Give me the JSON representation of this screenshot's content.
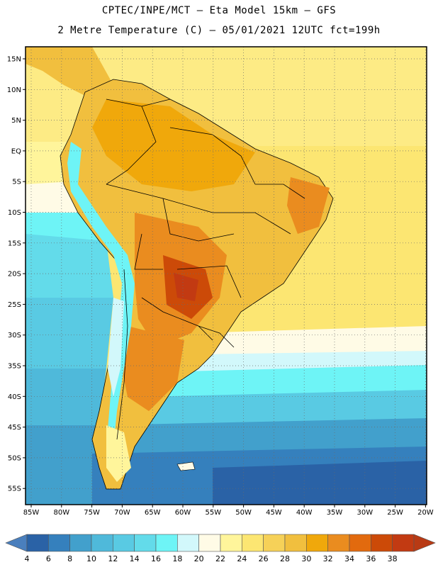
{
  "header": {
    "line1": "CPTEC/INPE/MCT –  Eta Model 15km – GFS",
    "line2": "2 Metre Temperature (C) – 05/01/2021 12UTC fct=199h"
  },
  "axes": {
    "lat_labels": [
      "15N",
      "10N",
      "5N",
      "EQ",
      "5S",
      "10S",
      "15S",
      "20S",
      "25S",
      "30S",
      "35S",
      "40S",
      "45S",
      "50S",
      "55S"
    ],
    "lon_labels": [
      "85W",
      "80W",
      "75W",
      "70W",
      "65W",
      "60W",
      "55W",
      "50W",
      "45W",
      "40W",
      "35W",
      "30W",
      "25W",
      "20W"
    ]
  },
  "colorbar": {
    "labels": [
      "4",
      "6",
      "8",
      "10",
      "12",
      "14",
      "16",
      "18",
      "20",
      "22",
      "24",
      "26",
      "28",
      "30",
      "32",
      "34",
      "36",
      "38"
    ],
    "colors": [
      "#2a62a6",
      "#3580bd",
      "#42a0cc",
      "#4fb9da",
      "#59cae3",
      "#63dbea",
      "#6ef4f6",
      "#d2f8fb",
      "#fffbe6",
      "#fff59b",
      "#fce672",
      "#f6d158",
      "#f1bf3e",
      "#f0a80b",
      "#ea8c1f",
      "#e26a0e",
      "#cc4a08",
      "#c23a12"
    ],
    "under_color": "#4a7fbd",
    "over_color": "#b83a14"
  }
}
